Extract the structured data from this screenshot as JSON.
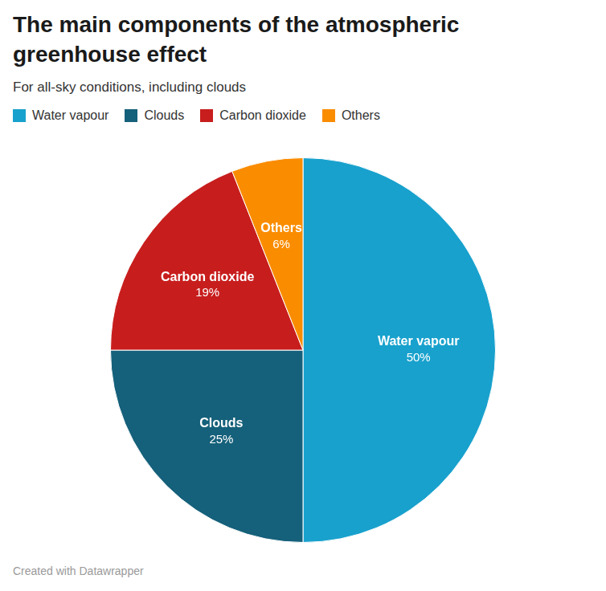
{
  "chart_data": {
    "type": "pie",
    "title": "The main components of the atmospheric greenhouse effect",
    "subtitle": "For all-sky conditions, including clouds",
    "categories": [
      "Water vapour",
      "Clouds",
      "Carbon dioxide",
      "Others"
    ],
    "values": [
      50,
      25,
      19,
      6
    ],
    "value_labels": [
      "50%",
      "25%",
      "19%",
      "6%"
    ],
    "colors": [
      "#18a1cd",
      "#15607a",
      "#c71e1d",
      "#fa8c00"
    ],
    "legend": "top-left",
    "data_labels": true,
    "annotations": [
      "Created with Datawrapper"
    ]
  }
}
